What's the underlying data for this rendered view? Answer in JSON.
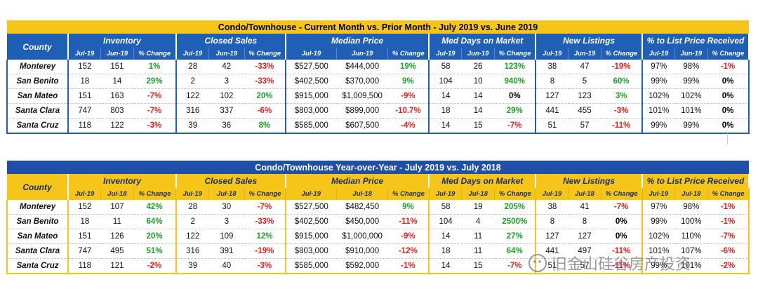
{
  "groups": [
    "Inventory",
    "Closed Sales",
    "Median Price",
    "Med Days on Market",
    "New Listings",
    "% to List Price Received"
  ],
  "county_label": "County",
  "watermark_text": "旧金山硅谷房产投资",
  "tables": [
    {
      "title": "Condo/Townhouse - Current Month vs. Prior Month - July 2019 vs. June 2019",
      "sub": [
        "Jul-19",
        "Jun-19",
        "% Change"
      ],
      "rows": [
        {
          "county": "Monterey",
          "cells": [
            "152",
            "151",
            "1%",
            "28",
            "42",
            "-33%",
            "$527,500",
            "$444,000",
            "19%",
            "58",
            "26",
            "123%",
            "38",
            "47",
            "-19%",
            "97%",
            "98%",
            "-1%"
          ]
        },
        {
          "county": "San Benito",
          "cells": [
            "18",
            "14",
            "29%",
            "2",
            "3",
            "-33%",
            "$402,500",
            "$370,000",
            "9%",
            "104",
            "10",
            "940%",
            "8",
            "5",
            "60%",
            "99%",
            "99%",
            "0%"
          ]
        },
        {
          "county": "San Mateo",
          "cells": [
            "151",
            "163",
            "-7%",
            "122",
            "102",
            "20%",
            "$915,000",
            "$1,009,500",
            "-9%",
            "14",
            "14",
            "0%",
            "127",
            "123",
            "3%",
            "102%",
            "102%",
            "0%"
          ]
        },
        {
          "county": "Santa Clara",
          "cells": [
            "747",
            "803",
            "-7%",
            "316",
            "337",
            "-6%",
            "$803,000",
            "$899,000",
            "-10.7%",
            "18",
            "14",
            "29%",
            "441",
            "455",
            "-3%",
            "101%",
            "101%",
            "0%"
          ]
        },
        {
          "county": "Santa Cruz",
          "cells": [
            "118",
            "122",
            "-3%",
            "39",
            "36",
            "8%",
            "$585,000",
            "$607,500",
            "-4%",
            "14",
            "15",
            "-7%",
            "51",
            "57",
            "-11%",
            "99%",
            "99%",
            "0%"
          ]
        }
      ]
    },
    {
      "title": "Condo/Townhouse Year-over-Year - July 2019 vs. July 2018",
      "sub": [
        "Jul-19",
        "Jul-18",
        "% Change"
      ],
      "rows": [
        {
          "county": "Monterey",
          "cells": [
            "152",
            "107",
            "42%",
            "28",
            "30",
            "-7%",
            "$527,500",
            "$482,450",
            "9%",
            "58",
            "19",
            "205%",
            "38",
            "41",
            "-7%",
            "97%",
            "98%",
            "-1%"
          ]
        },
        {
          "county": "San Benito",
          "cells": [
            "18",
            "11",
            "64%",
            "2",
            "3",
            "-33%",
            "$402,500",
            "$450,000",
            "-11%",
            "104",
            "4",
            "2500%",
            "8",
            "8",
            "0%",
            "99%",
            "100%",
            "-1%"
          ]
        },
        {
          "county": "San Mateo",
          "cells": [
            "151",
            "126",
            "20%",
            "122",
            "109",
            "12%",
            "$915,000",
            "$1,000,000",
            "-9%",
            "14",
            "11",
            "27%",
            "127",
            "127",
            "0%",
            "102%",
            "110%",
            "-7%"
          ]
        },
        {
          "county": "Santa Clara",
          "cells": [
            "747",
            "495",
            "51%",
            "316",
            "391",
            "-19%",
            "$803,000",
            "$910,000",
            "-12%",
            "18",
            "11",
            "64%",
            "441",
            "497",
            "-11%",
            "101%",
            "107%",
            "-6%"
          ]
        },
        {
          "county": "Santa Cruz",
          "cells": [
            "118",
            "121",
            "-2%",
            "39",
            "40",
            "-3%",
            "$585,000",
            "$592,000",
            "-1%",
            "14",
            "15",
            "-7%",
            "51",
            "57",
            "-11%",
            "99%",
            "101%",
            "-2%"
          ]
        }
      ]
    }
  ]
}
